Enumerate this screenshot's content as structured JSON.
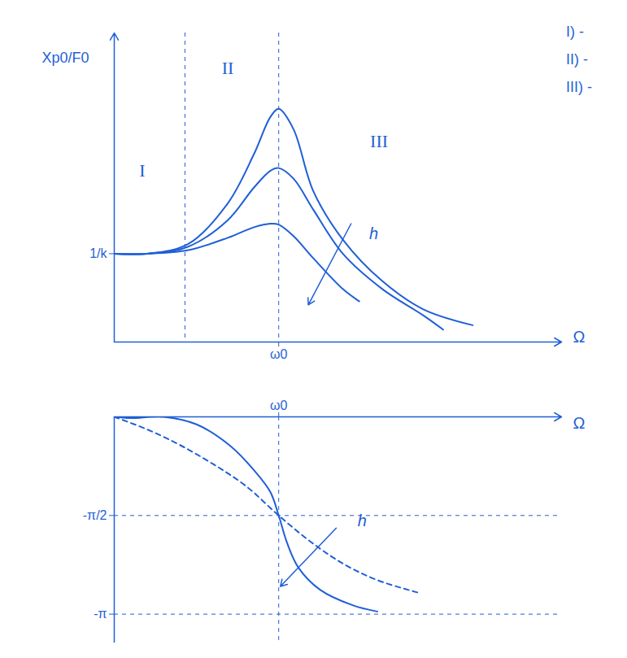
{
  "chart_data": [
    {
      "type": "line",
      "y_label": "Xp0/F0",
      "x_label": "Ω",
      "xlim": [
        0,
        2.72
      ],
      "ylim": [
        0,
        3.5
      ],
      "xticks": [
        {
          "value": 1,
          "label": "ω0"
        }
      ],
      "yticks": [
        {
          "value": 1,
          "label": "1/k"
        }
      ],
      "grid": "x",
      "region_dividers": [
        0.43
      ],
      "regions": [
        {
          "label": "I",
          "x": 0.17,
          "y": 1.94
        },
        {
          "label": "II",
          "x": 0.69,
          "y": 3.1
        },
        {
          "label": "III",
          "x": 1.61,
          "y": 2.27
        }
      ],
      "annotations": [
        {
          "text": "h",
          "x": 1.53,
          "y": 1.22,
          "arrow_from": [
            1.44,
            1.34
          ],
          "arrow_to": [
            1.18,
            0.42
          ]
        }
      ],
      "side_notes": [
        "I) -",
        "II) -",
        "III) -"
      ],
      "series": [
        {
          "color": "#1f5fd6",
          "line_style": "solid",
          "x": [
            0,
            0.2,
            0.45,
            0.69,
            0.85,
            0.95,
            1.0,
            1.09,
            1.21,
            1.39,
            1.63,
            1.88,
            2.18
          ],
          "values": [
            1,
            1.0,
            1.11,
            1.57,
            2.13,
            2.55,
            2.64,
            2.41,
            1.71,
            1.16,
            0.69,
            0.37,
            0.19
          ]
        },
        {
          "color": "#1f5fd6",
          "line_style": "solid",
          "x": [
            0,
            0.2,
            0.45,
            0.69,
            0.85,
            0.95,
            1.0,
            1.09,
            1.21,
            1.39,
            1.63,
            1.88,
            2.0
          ],
          "values": [
            1,
            1.0,
            1.08,
            1.38,
            1.75,
            1.94,
            1.97,
            1.85,
            1.5,
            1.0,
            0.6,
            0.3,
            0.14
          ]
        },
        {
          "color": "#1f5fd6",
          "line_style": "solid",
          "x": [
            0,
            0.2,
            0.45,
            0.69,
            0.85,
            0.95,
            1.0,
            1.09,
            1.21,
            1.39,
            1.49
          ],
          "values": [
            1,
            1.0,
            1.04,
            1.18,
            1.3,
            1.34,
            1.33,
            1.2,
            0.95,
            0.6,
            0.46
          ]
        }
      ]
    },
    {
      "type": "line",
      "x_label": "Ω",
      "xlim": [
        0,
        2.72
      ],
      "ylim": [
        -3.6,
        0
      ],
      "xticks": [
        {
          "value": 1,
          "label": "ω0"
        }
      ],
      "yticks": [
        {
          "value": -1.5708,
          "label": "-π/2"
        },
        {
          "value": -3.1416,
          "label": "-π"
        }
      ],
      "grid": true,
      "annotations": [
        {
          "text": "h",
          "x": 1.46,
          "y": -1.66,
          "arrow_from": [
            1.35,
            -1.77
          ],
          "arrow_to": [
            1.01,
            -2.7
          ]
        }
      ],
      "series": [
        {
          "color": "#1f5fd6",
          "line_style": "solid",
          "x": [
            0,
            0.1,
            0.3,
            0.5,
            0.7,
            0.85,
            0.95,
            1.0,
            1.05,
            1.12,
            1.25,
            1.45,
            1.6
          ],
          "values": [
            0,
            -0.02,
            0,
            -0.12,
            -0.45,
            -0.85,
            -1.2,
            -1.5708,
            -2.0,
            -2.4,
            -2.75,
            -3.0,
            -3.1
          ]
        },
        {
          "color": "#1f5fd6",
          "line_style": "dashed",
          "x": [
            0,
            0.2,
            0.4,
            0.6,
            0.8,
            1.0,
            1.2,
            1.4,
            1.6,
            1.85
          ],
          "values": [
            0,
            -0.2,
            -0.45,
            -0.75,
            -1.1,
            -1.5708,
            -2.0,
            -2.35,
            -2.6,
            -2.8
          ]
        }
      ]
    }
  ]
}
